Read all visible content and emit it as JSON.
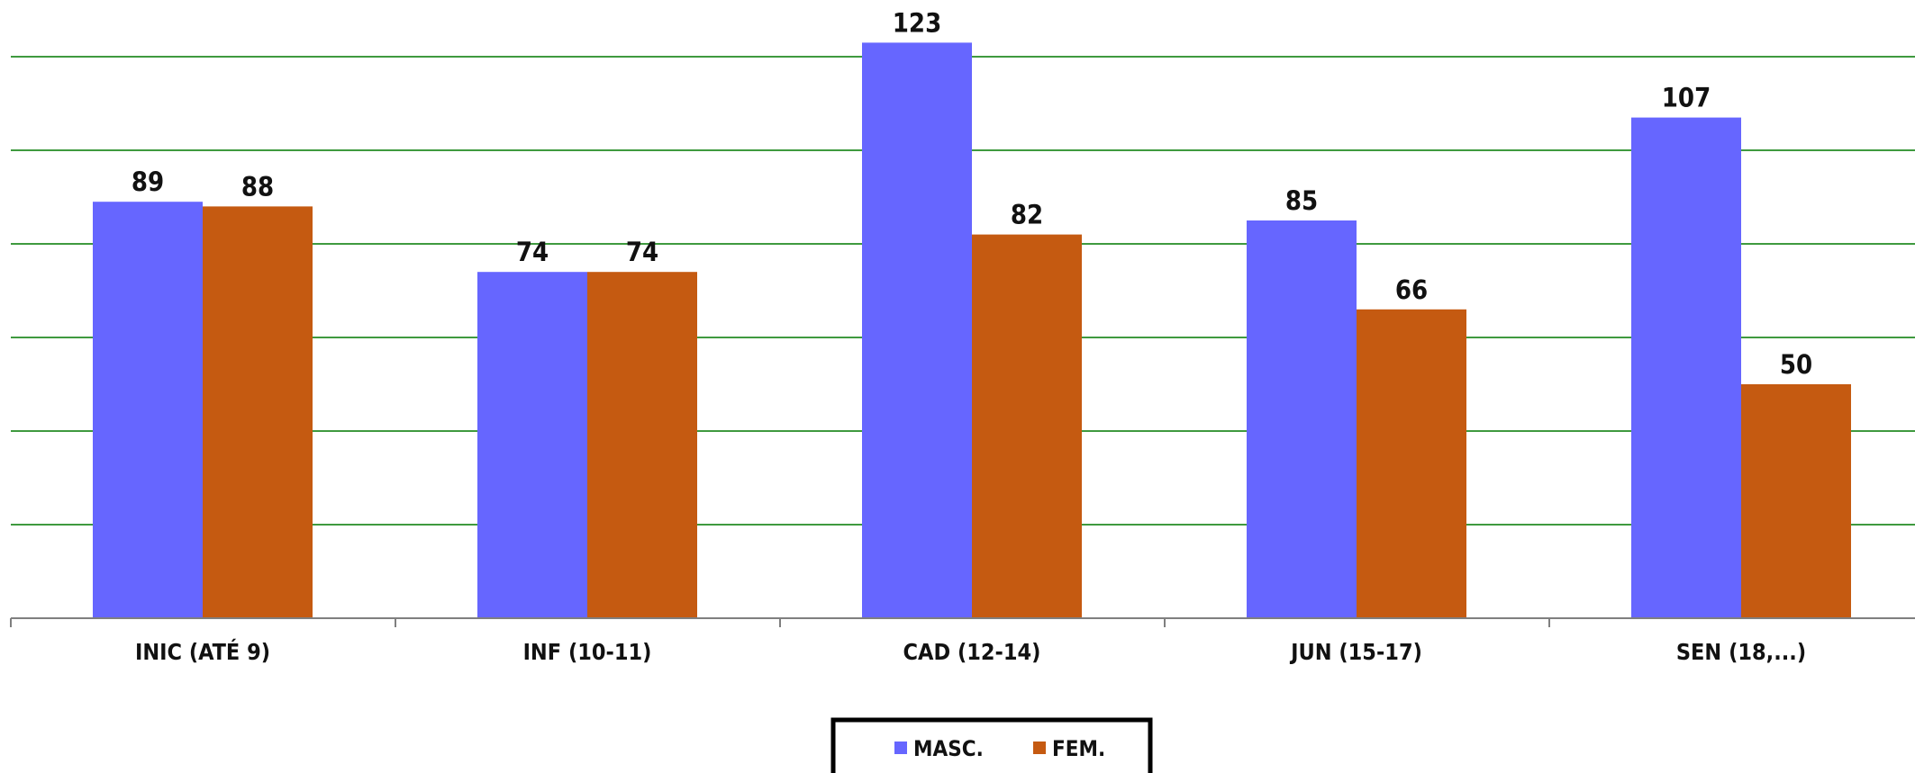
{
  "chart_data": {
    "type": "bar",
    "title": "",
    "xlabel": "",
    "ylabel": "",
    "categories": [
      "INIC (ATÉ 9)",
      "INF (10-11)",
      "CAD (12-14)",
      "JUN (15-17)",
      "SEN (18,...)"
    ],
    "series": [
      {
        "name": "MASC.",
        "color": "#6666ff",
        "values": [
          89,
          74,
          123,
          85,
          107
        ]
      },
      {
        "name": "FEM.",
        "color": "#c55a11",
        "values": [
          88,
          74,
          82,
          66,
          50
        ]
      }
    ],
    "ylim": [
      0,
      120
    ],
    "gridlines": true,
    "gridline_color": "#3f9a3f",
    "data_labels": true,
    "legend_position": "bottom"
  }
}
